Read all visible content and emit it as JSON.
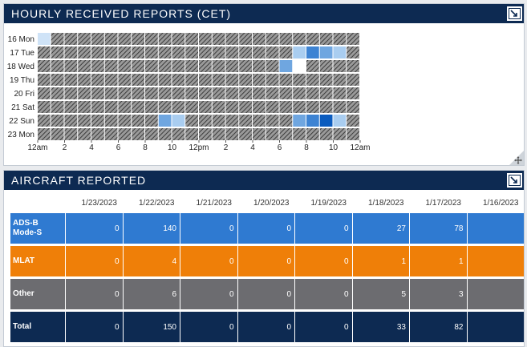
{
  "hourly": {
    "title": "HOURLY RECEIVED REPORTS (CET)",
    "days": [
      "16 Mon",
      "17 Tue",
      "18 Wed",
      "19 Thu",
      "20 Fri",
      "21 Sat",
      "22 Sun",
      "23 Mon"
    ],
    "hour_labels": [
      "12am",
      "2",
      "4",
      "6",
      "8",
      "10",
      "12pm",
      "2",
      "4",
      "6",
      "8",
      "10",
      "12am"
    ],
    "colors": {
      "light": "#cfe3f7",
      "mid_light": "#a9cdf0",
      "mid": "#6fa6e0",
      "strong": "#3d83d3",
      "dark": "#0b5cbf",
      "empty": "#ffffff"
    },
    "cells": [
      {
        "day": 0,
        "hour": 0,
        "level": "light"
      },
      {
        "day": 1,
        "hour": 19,
        "level": "mid_light"
      },
      {
        "day": 1,
        "hour": 20,
        "level": "strong"
      },
      {
        "day": 1,
        "hour": 21,
        "level": "mid"
      },
      {
        "day": 1,
        "hour": 22,
        "level": "mid_light"
      },
      {
        "day": 2,
        "hour": 18,
        "level": "mid"
      },
      {
        "day": 2,
        "hour": 19,
        "level": "empty"
      },
      {
        "day": 6,
        "hour": 9,
        "level": "mid"
      },
      {
        "day": 6,
        "hour": 10,
        "level": "mid_light"
      },
      {
        "day": 6,
        "hour": 19,
        "level": "mid"
      },
      {
        "day": 6,
        "hour": 20,
        "level": "strong"
      },
      {
        "day": 6,
        "hour": 21,
        "level": "dark"
      },
      {
        "day": 6,
        "hour": 22,
        "level": "mid_light"
      }
    ]
  },
  "aircraft": {
    "title": "AIRCRAFT REPORTED",
    "dates": [
      "1/23/2023",
      "1/22/2023",
      "1/21/2023",
      "1/20/2023",
      "1/19/2023",
      "1/18/2023",
      "1/17/2023",
      "1/16/2023"
    ],
    "rows": [
      {
        "label_line1": "ADS-B",
        "label_line2": "Mode-S",
        "color": "#2f7ad1",
        "values": [
          "0",
          "140",
          "0",
          "0",
          "0",
          "27",
          "78",
          ""
        ]
      },
      {
        "label_line1": "MLAT",
        "label_line2": "",
        "color": "#ef7f08",
        "values": [
          "0",
          "4",
          "0",
          "0",
          "0",
          "1",
          "1",
          ""
        ]
      },
      {
        "label_line1": "Other",
        "label_line2": "",
        "color": "#6c6c70",
        "values": [
          "0",
          "6",
          "0",
          "0",
          "0",
          "5",
          "3",
          ""
        ]
      },
      {
        "label_line1": "Total",
        "label_line2": "",
        "color": "#0d2a52",
        "values": [
          "0",
          "150",
          "0",
          "0",
          "0",
          "33",
          "82",
          ""
        ]
      }
    ]
  }
}
